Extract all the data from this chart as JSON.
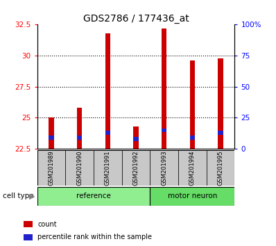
{
  "title": "GDS2786 / 177436_at",
  "categories": [
    "GSM201989",
    "GSM201990",
    "GSM201991",
    "GSM201992",
    "GSM201993",
    "GSM201994",
    "GSM201995"
  ],
  "bar_bottoms": [
    22.5,
    22.5,
    22.5,
    22.5,
    22.5,
    22.5,
    22.5
  ],
  "bar_tops": [
    25.0,
    25.8,
    31.8,
    24.3,
    32.2,
    29.6,
    29.8
  ],
  "blue_bottoms": [
    23.25,
    23.25,
    23.65,
    23.15,
    23.85,
    23.25,
    23.65
  ],
  "blue_tops": [
    23.55,
    23.55,
    23.95,
    23.45,
    24.15,
    23.55,
    23.95
  ],
  "ylim_left": [
    22.5,
    32.5
  ],
  "ylim_right": [
    0,
    100
  ],
  "yticks_left": [
    22.5,
    25.0,
    27.5,
    30.0,
    32.5
  ],
  "yticks_right": [
    0,
    25,
    50,
    75,
    100
  ],
  "ytick_labels_left": [
    "22.5",
    "25",
    "27.5",
    "30",
    "32.5"
  ],
  "ytick_labels_right": [
    "0",
    "25",
    "50",
    "75",
    "100%"
  ],
  "bar_color": "#cc0000",
  "blue_color": "#2222cc",
  "group_labels": [
    "reference",
    "motor neuron"
  ],
  "group_ranges": [
    [
      0,
      3
    ],
    [
      4,
      6
    ]
  ],
  "group_colors": [
    "#90ee90",
    "#66dd66"
  ],
  "cell_type_label": "cell type",
  "legend_items": [
    "count",
    "percentile rank within the sample"
  ],
  "legend_colors": [
    "#cc0000",
    "#2222cc"
  ],
  "tick_label_box_color": "#c8c8c8",
  "title_fontsize": 10,
  "tick_fontsize": 7.5,
  "bar_width": 0.18
}
